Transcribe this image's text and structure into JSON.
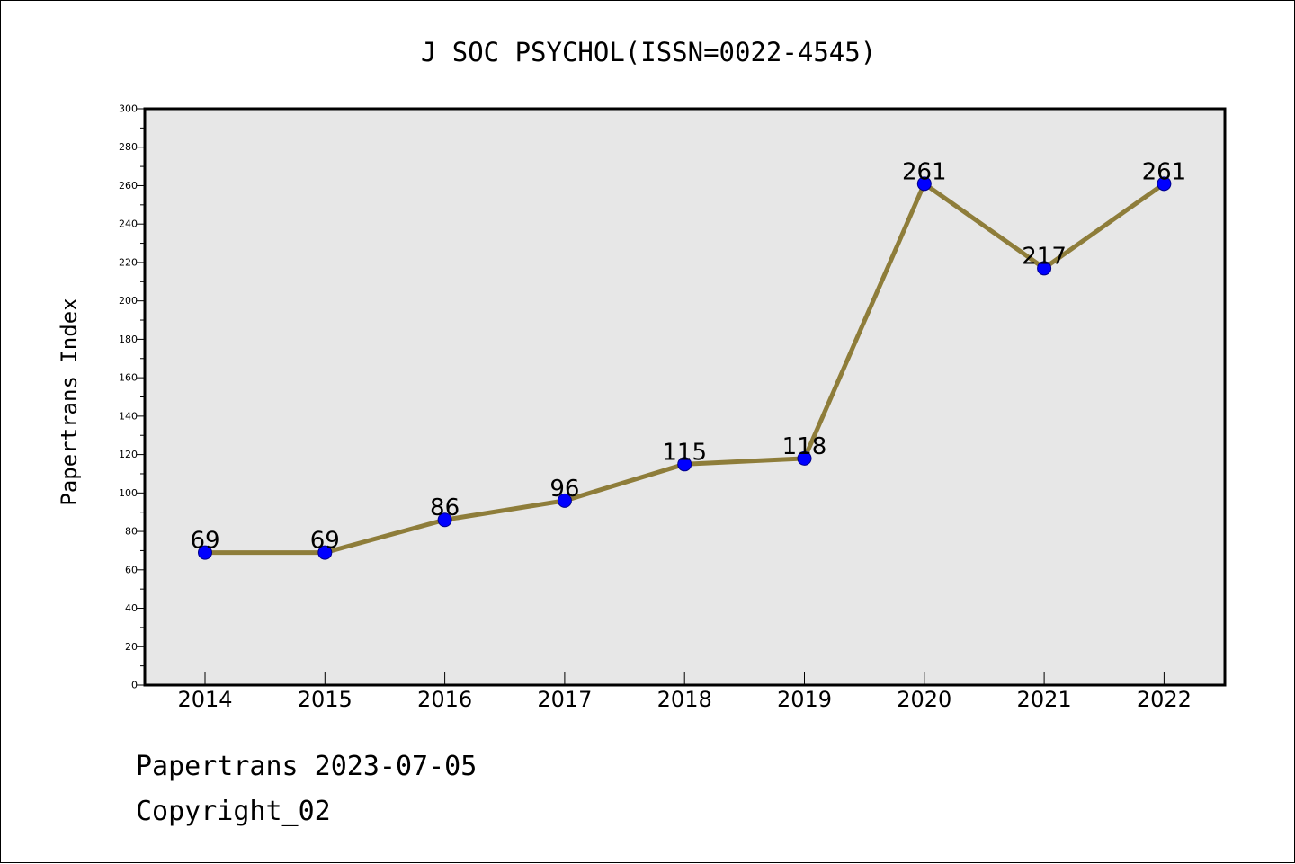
{
  "chart_data": {
    "type": "line",
    "title": "J SOC PSYCHOL(ISSN=0022-4545)",
    "xlabel": "",
    "ylabel": "Papertrans Index",
    "categories": [
      "2014",
      "2015",
      "2016",
      "2017",
      "2018",
      "2019",
      "2020",
      "2021",
      "2022"
    ],
    "values": [
      69,
      69,
      86,
      96,
      115,
      118,
      261,
      217,
      261
    ],
    "ylim": [
      0,
      300
    ],
    "yticks": [
      0,
      20,
      40,
      60,
      80,
      100,
      120,
      140,
      160,
      180,
      200,
      220,
      240,
      260,
      280,
      300
    ],
    "grid": false,
    "legend": "none",
    "line_color": "#8e7d3a",
    "marker_color": "#0000ff",
    "plot_background": "#e7e7e7"
  },
  "footer": {
    "date_line": "Papertrans 2023-07-05",
    "copyright": "Copyright_02"
  }
}
